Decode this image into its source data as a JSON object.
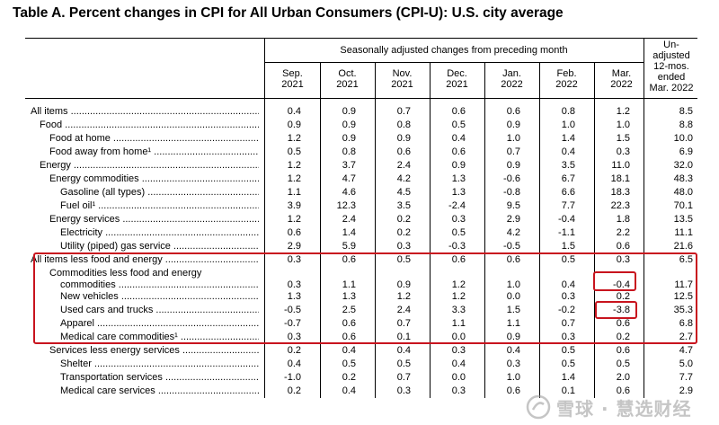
{
  "title": "Table A. Percent changes in CPI for All Urban Consumers (CPI-U): U.S. city average",
  "header": {
    "group_label": "Seasonally adjusted changes from preceding month",
    "months": [
      {
        "line1": "Sep.",
        "line2": "2021"
      },
      {
        "line1": "Oct.",
        "line2": "2021"
      },
      {
        "line1": "Nov.",
        "line2": "2021"
      },
      {
        "line1": "Dec.",
        "line2": "2021"
      },
      {
        "line1": "Jan.",
        "line2": "2022"
      },
      {
        "line1": "Feb.",
        "line2": "2022"
      },
      {
        "line1": "Mar.",
        "line2": "2022"
      }
    ],
    "unadjusted": [
      "Un-",
      "adjusted",
      "12-mos.",
      "ended",
      "Mar. 2022"
    ]
  },
  "rows": [
    {
      "label": "All items",
      "values": [
        "0.4",
        "0.9",
        "0.7",
        "0.6",
        "0.6",
        "0.8",
        "1.2",
        "8.5"
      ]
    },
    {
      "label": "Food",
      "values": [
        "0.9",
        "0.9",
        "0.8",
        "0.5",
        "0.9",
        "1.0",
        "1.0",
        "8.8"
      ]
    },
    {
      "label": "Food at home",
      "values": [
        "1.2",
        "0.9",
        "0.9",
        "0.4",
        "1.0",
        "1.4",
        "1.5",
        "10.0"
      ]
    },
    {
      "label": "Food away from home¹",
      "values": [
        "0.5",
        "0.8",
        "0.6",
        "0.6",
        "0.7",
        "0.4",
        "0.3",
        "6.9"
      ]
    },
    {
      "label": "Energy",
      "values": [
        "1.2",
        "3.7",
        "2.4",
        "0.9",
        "0.9",
        "3.5",
        "11.0",
        "32.0"
      ]
    },
    {
      "label": "Energy commodities",
      "values": [
        "1.2",
        "4.7",
        "4.2",
        "1.3",
        "-0.6",
        "6.7",
        "18.1",
        "48.3"
      ]
    },
    {
      "label": "Gasoline (all types)",
      "values": [
        "1.1",
        "4.6",
        "4.5",
        "1.3",
        "-0.8",
        "6.6",
        "18.3",
        "48.0"
      ]
    },
    {
      "label": "Fuel oil¹",
      "values": [
        "3.9",
        "12.3",
        "3.5",
        "-2.4",
        "9.5",
        "7.7",
        "22.3",
        "70.1"
      ]
    },
    {
      "label": "Energy services",
      "values": [
        "1.2",
        "2.4",
        "0.2",
        "0.3",
        "2.9",
        "-0.4",
        "1.8",
        "13.5"
      ]
    },
    {
      "label": "Electricity",
      "values": [
        "0.6",
        "1.4",
        "0.2",
        "0.5",
        "4.2",
        "-1.1",
        "2.2",
        "11.1"
      ]
    },
    {
      "label": "Utility (piped) gas service",
      "values": [
        "2.9",
        "5.9",
        "0.3",
        "-0.3",
        "-0.5",
        "1.5",
        "0.6",
        "21.6"
      ]
    },
    {
      "label": "All items less food and energy",
      "values": [
        "0.3",
        "0.6",
        "0.5",
        "0.6",
        "0.6",
        "0.5",
        "0.3",
        "6.5"
      ]
    },
    {
      "label": "Commodities less food and energy",
      "label2": "commodities",
      "values": [
        "0.3",
        "1.1",
        "0.9",
        "1.2",
        "1.0",
        "0.4",
        "-0.4",
        "11.7"
      ]
    },
    {
      "label": "New vehicles",
      "values": [
        "1.3",
        "1.3",
        "1.2",
        "1.2",
        "0.0",
        "0.3",
        "0.2",
        "12.5"
      ]
    },
    {
      "label": "Used cars and trucks",
      "values": [
        "-0.5",
        "2.5",
        "2.4",
        "3.3",
        "1.5",
        "-0.2",
        "-3.8",
        "35.3"
      ]
    },
    {
      "label": "Apparel",
      "values": [
        "-0.7",
        "0.6",
        "0.7",
        "1.1",
        "1.1",
        "0.7",
        "0.6",
        "6.8"
      ]
    },
    {
      "label": "Medical care commodities¹",
      "values": [
        "0.3",
        "0.6",
        "0.1",
        "0.0",
        "0.9",
        "0.3",
        "0.2",
        "2.7"
      ]
    },
    {
      "label": "Services less energy services",
      "values": [
        "0.2",
        "0.4",
        "0.4",
        "0.3",
        "0.4",
        "0.5",
        "0.6",
        "4.7"
      ]
    },
    {
      "label": "Shelter",
      "values": [
        "0.4",
        "0.5",
        "0.5",
        "0.4",
        "0.3",
        "0.5",
        "0.5",
        "5.0"
      ]
    },
    {
      "label": "Transportation services",
      "values": [
        "-1.0",
        "0.2",
        "0.7",
        "0.0",
        "1.0",
        "1.4",
        "2.0",
        "7.7"
      ]
    },
    {
      "label": "Medical care services",
      "values": [
        "0.2",
        "0.4",
        "0.3",
        "0.3",
        "0.6",
        "0.1",
        "0.6",
        "2.9"
      ]
    }
  ],
  "watermark": {
    "text": "雪球 · 慧选财经"
  },
  "colors": {
    "highlight": "#c8141e"
  }
}
